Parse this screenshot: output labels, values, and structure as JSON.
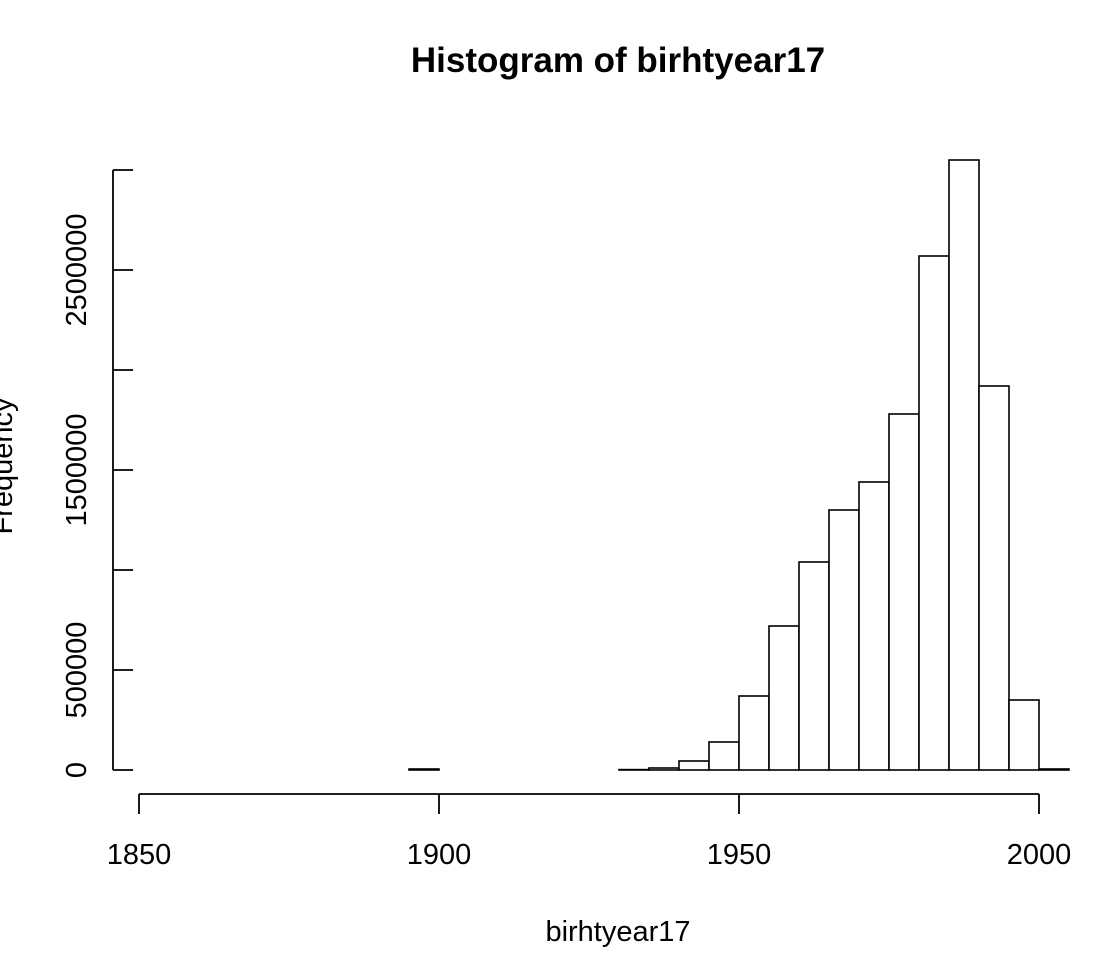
{
  "chart_data": {
    "type": "histogram",
    "title": "Histogram of birhtyear17",
    "xlabel": "birhtyear17",
    "ylabel": "Frequency",
    "bin_width": 5,
    "bins": [
      {
        "start": 1855,
        "end": 1860,
        "count": 0
      },
      {
        "start": 1860,
        "end": 1865,
        "count": 0
      },
      {
        "start": 1865,
        "end": 1870,
        "count": 0
      },
      {
        "start": 1870,
        "end": 1875,
        "count": 0
      },
      {
        "start": 1875,
        "end": 1880,
        "count": 0
      },
      {
        "start": 1880,
        "end": 1885,
        "count": 0
      },
      {
        "start": 1885,
        "end": 1890,
        "count": 0
      },
      {
        "start": 1890,
        "end": 1895,
        "count": 0
      },
      {
        "start": 1895,
        "end": 1900,
        "count": 5000
      },
      {
        "start": 1900,
        "end": 1905,
        "count": 0
      },
      {
        "start": 1905,
        "end": 1910,
        "count": 0
      },
      {
        "start": 1910,
        "end": 1915,
        "count": 0
      },
      {
        "start": 1915,
        "end": 1920,
        "count": 0
      },
      {
        "start": 1920,
        "end": 1925,
        "count": 0
      },
      {
        "start": 1925,
        "end": 1930,
        "count": 0
      },
      {
        "start": 1930,
        "end": 1935,
        "count": 2000
      },
      {
        "start": 1935,
        "end": 1940,
        "count": 10000
      },
      {
        "start": 1940,
        "end": 1945,
        "count": 45000
      },
      {
        "start": 1945,
        "end": 1950,
        "count": 140000
      },
      {
        "start": 1950,
        "end": 1955,
        "count": 370000
      },
      {
        "start": 1955,
        "end": 1960,
        "count": 720000
      },
      {
        "start": 1960,
        "end": 1965,
        "count": 1040000
      },
      {
        "start": 1965,
        "end": 1970,
        "count": 1300000
      },
      {
        "start": 1970,
        "end": 1975,
        "count": 1440000
      },
      {
        "start": 1975,
        "end": 1980,
        "count": 1780000
      },
      {
        "start": 1980,
        "end": 1985,
        "count": 2570000
      },
      {
        "start": 1985,
        "end": 1990,
        "count": 3050000
      },
      {
        "start": 1990,
        "end": 1995,
        "count": 1920000
      },
      {
        "start": 1995,
        "end": 2000,
        "count": 350000
      },
      {
        "start": 2000,
        "end": 2005,
        "count": 5000
      }
    ],
    "x_ticks": [
      1850,
      1900,
      1950,
      2000
    ],
    "x_tick_labels": [
      "1850",
      "1900",
      "1950",
      "2000"
    ],
    "y_ticks": [
      0,
      500000,
      1000000,
      1500000,
      2000000,
      2500000,
      3000000
    ],
    "y_tick_labels": [
      "0",
      "500000",
      "",
      "1500000",
      "",
      "2500000",
      ""
    ],
    "xlim": [
      1850,
      2005
    ],
    "ylim": [
      0,
      3050000
    ],
    "grid": false,
    "legend": "none",
    "colors": {
      "bar_fill": "#ffffff",
      "bar_stroke": "#000000",
      "axis": "#000000"
    }
  }
}
